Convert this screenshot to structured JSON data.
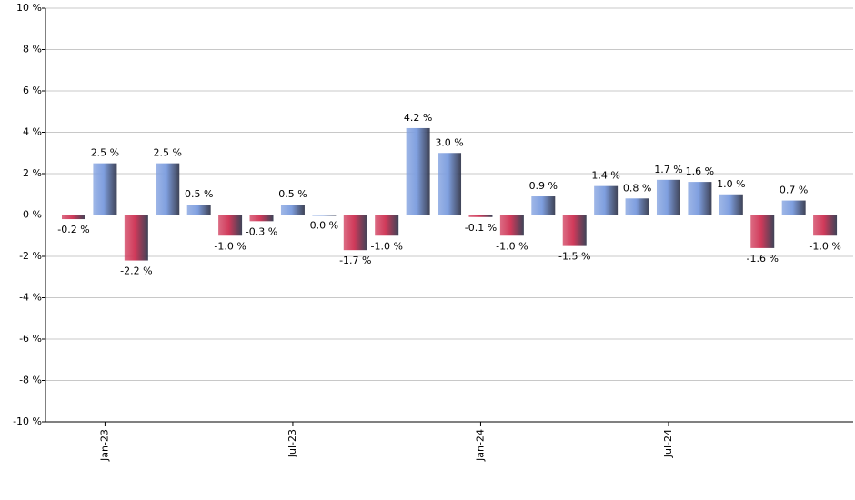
{
  "chart_data": {
    "type": "bar",
    "categories": [
      null,
      "Jan-23",
      null,
      null,
      null,
      null,
      null,
      "Jul-23",
      null,
      null,
      null,
      null,
      null,
      "Jan-24",
      null,
      null,
      null,
      null,
      null,
      "Jul-24",
      null,
      null,
      null,
      null,
      null
    ],
    "values": [
      -0.2,
      2.5,
      -2.2,
      2.5,
      0.5,
      -1.0,
      -0.3,
      0.5,
      0.0,
      -1.7,
      -1.0,
      4.2,
      3.0,
      -0.1,
      -1.0,
      0.9,
      -1.5,
      1.4,
      0.8,
      1.7,
      1.6,
      1.0,
      -1.6,
      0.7,
      -1.0
    ],
    "value_labels": [
      "-0.2 %",
      "2.5 %",
      "-2.2 %",
      "2.5 %",
      "0.5 %",
      "-1.0 %",
      "-0.3 %",
      "0.5 %",
      "0.0 %",
      "-1.7 %",
      "-1.0 %",
      "4.2 %",
      "3.0 %",
      "-0.1 %",
      "-1.0 %",
      "0.9 %",
      "-1.5 %",
      "1.4 %",
      "0.8 %",
      "1.7 %",
      "1.6 %",
      "1.0 %",
      "-1.6 %",
      "0.7 %",
      "-1.0 %"
    ],
    "positive_color": "#7f9fdf",
    "negative_color": "#d03a5a",
    "ylim": [
      -10,
      10
    ],
    "yticks": [
      {
        "value": -10,
        "label": "-10 %"
      },
      {
        "value": -8,
        "label": "-8 %"
      },
      {
        "value": -6,
        "label": "-6 %"
      },
      {
        "value": -4,
        "label": "-4 %"
      },
      {
        "value": -2,
        "label": "-2 %"
      },
      {
        "value": 0,
        "label": "0 %"
      },
      {
        "value": 2,
        "label": "2 %"
      },
      {
        "value": 4,
        "label": "4 %"
      },
      {
        "value": 6,
        "label": "6 %"
      },
      {
        "value": 8,
        "label": "8 %"
      },
      {
        "value": 10,
        "label": "10 %"
      }
    ],
    "grid": true
  }
}
